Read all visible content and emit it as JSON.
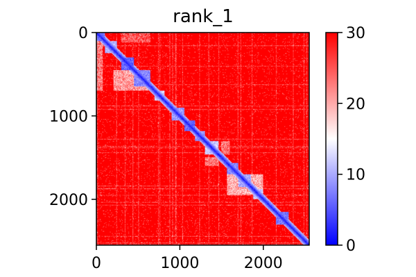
{
  "chart_data": {
    "type": "heatmap",
    "title": "rank_1",
    "xlabel": "",
    "ylabel": "",
    "xlim": [
      0,
      2550
    ],
    "ylim": [
      2550,
      0
    ],
    "x_ticks": [
      0,
      1000,
      2000
    ],
    "x_tick_labels": [
      "0",
      "1000",
      "2000"
    ],
    "y_ticks": [
      0,
      1000,
      2000
    ],
    "y_tick_labels": [
      "0",
      "1000",
      "2000"
    ],
    "colormap": "bwr",
    "colormap_colors": [
      "#0000ff",
      "#ffffff",
      "#ff0000"
    ],
    "vmin": 0,
    "vmax": 30,
    "colorbar_ticks": [
      0,
      10,
      20,
      30
    ],
    "colorbar_tick_labels": [
      "0",
      "10",
      "20",
      "30"
    ],
    "background_value": 30,
    "diagonal_value": 0,
    "low_value_blocks": [
      {
        "start": 0,
        "end": 100,
        "value": 4
      },
      {
        "start": 100,
        "end": 250,
        "value": 8
      },
      {
        "start": 300,
        "end": 450,
        "value": 3
      },
      {
        "start": 450,
        "end": 650,
        "value": 5
      },
      {
        "start": 700,
        "end": 820,
        "value": 9
      },
      {
        "start": 900,
        "end": 1050,
        "value": 6
      },
      {
        "start": 1050,
        "end": 1180,
        "value": 3
      },
      {
        "start": 1180,
        "end": 1300,
        "value": 6
      },
      {
        "start": 1300,
        "end": 1460,
        "value": 9
      },
      {
        "start": 1560,
        "end": 1700,
        "value": 5
      },
      {
        "start": 1700,
        "end": 1850,
        "value": 7
      },
      {
        "start": 1880,
        "end": 2000,
        "value": 9
      },
      {
        "start": 2150,
        "end": 2300,
        "value": 4
      }
    ],
    "off_diagonal_low_regions": [
      {
        "x": [
          0,
          80
        ],
        "y": [
          100,
          700
        ],
        "value": 18
      },
      {
        "x": [
          300,
          650
        ],
        "y": [
          0,
          120
        ],
        "value": 20
      },
      {
        "x": [
          200,
          650
        ],
        "y": [
          450,
          700
        ],
        "value": 16
      },
      {
        "x": [
          1560,
          2000
        ],
        "y": [
          1700,
          1950
        ],
        "value": 15
      },
      {
        "x": [
          1300,
          1460
        ],
        "y": [
          1500,
          1600
        ],
        "value": 18
      },
      {
        "x": [
          1500,
          1600
        ],
        "y": [
          1300,
          1460
        ],
        "value": 18
      }
    ]
  }
}
